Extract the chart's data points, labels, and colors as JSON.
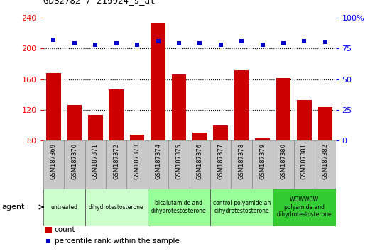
{
  "title": "GDS2782 / 219924_s_at",
  "samples": [
    "GSM187369",
    "GSM187370",
    "GSM187371",
    "GSM187372",
    "GSM187373",
    "GSM187374",
    "GSM187375",
    "GSM187376",
    "GSM187377",
    "GSM187378",
    "GSM187379",
    "GSM187380",
    "GSM187381",
    "GSM187382"
  ],
  "counts": [
    168,
    126,
    113,
    147,
    88,
    233,
    166,
    90,
    100,
    172,
    83,
    161,
    133,
    124
  ],
  "percentile": [
    82,
    79,
    78,
    79,
    78,
    81,
    79,
    79,
    78,
    81,
    78,
    79,
    81,
    80
  ],
  "ylim_left": [
    80,
    240
  ],
  "ylim_right": [
    0,
    100
  ],
  "yticks_left": [
    80,
    120,
    160,
    200,
    240
  ],
  "yticks_right": [
    0,
    25,
    50,
    75,
    100
  ],
  "yticklabels_right": [
    "0",
    "25",
    "50",
    "75",
    "100%"
  ],
  "bar_color": "#cc0000",
  "dot_color": "#0000cc",
  "grid_color": "#000000",
  "plot_bg": "#ffffff",
  "xtick_bg": "#d0d0d0",
  "agent_groups": [
    {
      "label": "untreated",
      "indices": [
        0,
        1
      ],
      "color": "#ccffcc"
    },
    {
      "label": "dihydrotestosterone",
      "indices": [
        2,
        3,
        4
      ],
      "color": "#ccffcc"
    },
    {
      "label": "bicalutamide and\ndihydrotestosterone",
      "indices": [
        5,
        6,
        7
      ],
      "color": "#99ff99"
    },
    {
      "label": "control polyamide an\ndihydrotestosterone",
      "indices": [
        8,
        9,
        10
      ],
      "color": "#99ff99"
    },
    {
      "label": "WGWWCW\npolyamide and\ndihydrotestosterone",
      "indices": [
        11,
        12,
        13
      ],
      "color": "#33cc33"
    }
  ],
  "agent_label": "agent",
  "legend_count_label": "count",
  "legend_pct_label": "percentile rank within the sample",
  "bg_color": "#ffffff"
}
